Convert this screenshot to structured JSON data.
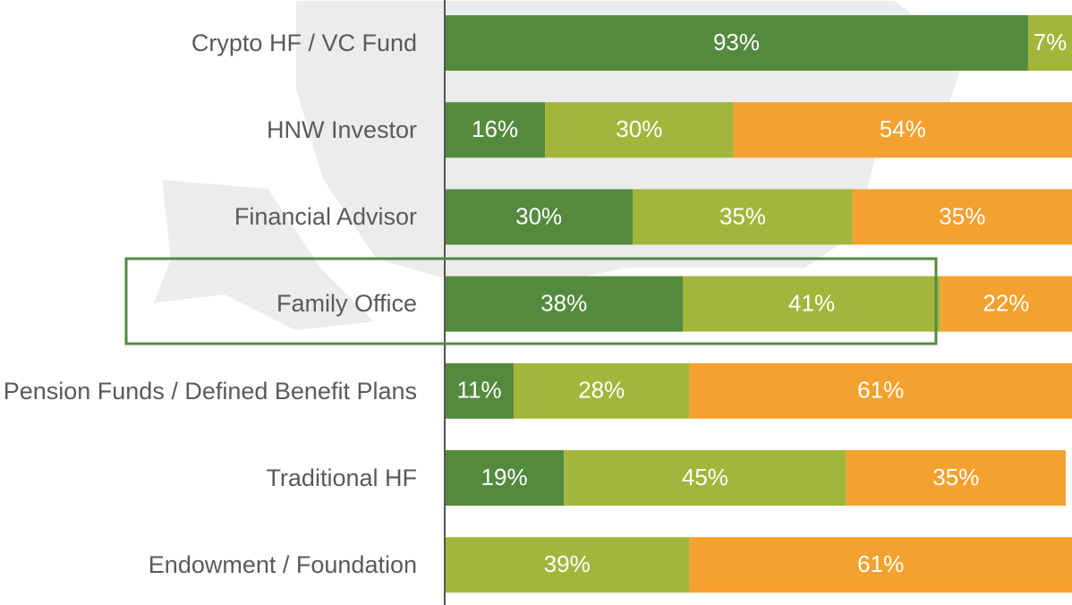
{
  "chart_data": {
    "type": "stacked-bar-horizontal",
    "categories": [
      "Crypto HF / VC Fund",
      "HNW Investor",
      "Financial Advisor",
      "Family Office",
      "Pension Funds / Defined Benefit Plans",
      "Traditional HF",
      "Endowment / Foundation"
    ],
    "series": [
      {
        "color": "#548a3e",
        "values": [
          93,
          16,
          30,
          38,
          11,
          19,
          null
        ],
        "value_labels": [
          "93%",
          "16%",
          "30%",
          "38%",
          "11%",
          "19%",
          null
        ]
      },
      {
        "color": "#a4b53b",
        "values": [
          7,
          30,
          35,
          41,
          28,
          45,
          39
        ],
        "value_labels": [
          "7%",
          "30%",
          "35%",
          "41%",
          "28%",
          "45%",
          "39%"
        ]
      },
      {
        "color": "#f4a12f",
        "values": [
          null,
          54,
          35,
          22,
          61,
          35,
          61
        ],
        "value_labels": [
          null,
          "54%",
          "35%",
          "22%",
          "61%",
          "35%",
          "61%"
        ]
      }
    ],
    "xlim": [
      0,
      100
    ]
  }
}
